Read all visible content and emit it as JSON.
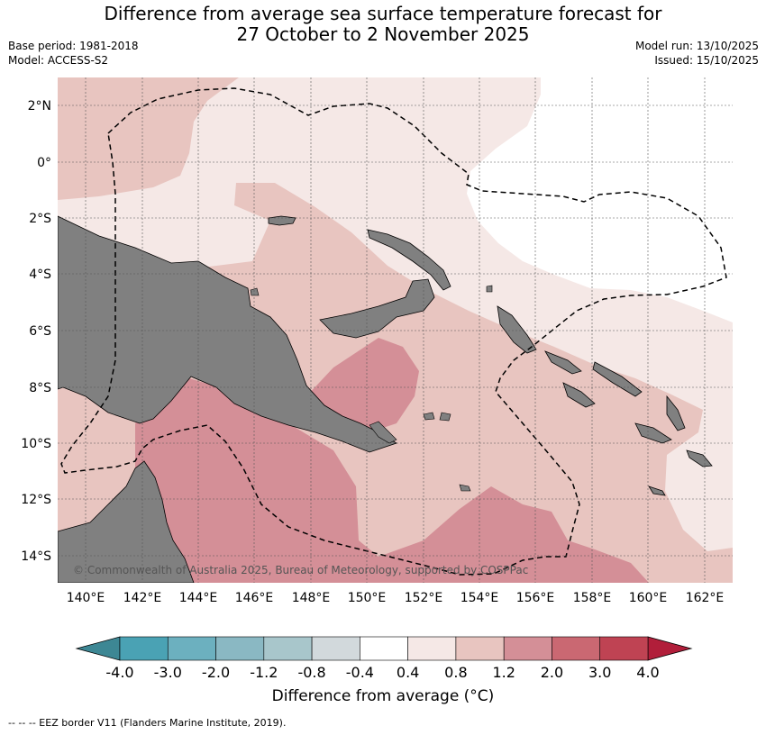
{
  "header": {
    "title_line1": "Difference from average sea surface temperature forecast for",
    "title_line2": "27 October to 2 November 2025",
    "base_period": "Base period: 1981-2018",
    "model": "Model: ACCESS-S2",
    "model_run": "Model run: 13/10/2025",
    "issued": "Issued: 15/10/2025"
  },
  "map": {
    "lat_labels": [
      "2°N",
      "0°",
      "2°S",
      "4°S",
      "6°S",
      "8°S",
      "10°S",
      "12°S",
      "14°S"
    ],
    "lon_labels": [
      "140°E",
      "142°E",
      "144°E",
      "146°E",
      "148°E",
      "150°E",
      "152°E",
      "154°E",
      "156°E",
      "158°E",
      "160°E",
      "162°E"
    ],
    "copyright": "© Commonwealth of Australia 2025, Bureau of Meteorology, supported by COSPPac",
    "colors": {
      "land": "#808080",
      "anom_0_4_0_8": "#f5e8e6",
      "anom_0_8_1_2": "#e8c5c0",
      "anom_1_2_2_0": "#d48f97",
      "neutral": "#ffffff"
    }
  },
  "colorbar": {
    "title": "Difference from average (°C)",
    "ticks": [
      "-4.0",
      "-3.0",
      "-2.0",
      "-1.2",
      "-0.8",
      "-0.4",
      "0.4",
      "0.8",
      "1.2",
      "2.0",
      "3.0",
      "4.0"
    ],
    "colors": [
      "#4aa2b4",
      "#6cb0bf",
      "#8ab8c3",
      "#a8c6cb",
      "#d2d9dc",
      "#ffffff",
      "#f5e8e6",
      "#e8c5c0",
      "#d48f97",
      "#ca6872",
      "#bf4353"
    ],
    "under_color": "#3d8794",
    "over_color": "#b11e3a"
  },
  "footer": {
    "legend_text": "--  --  -- EEZ border V11 (Flanders Marine Institute, 2019)."
  }
}
